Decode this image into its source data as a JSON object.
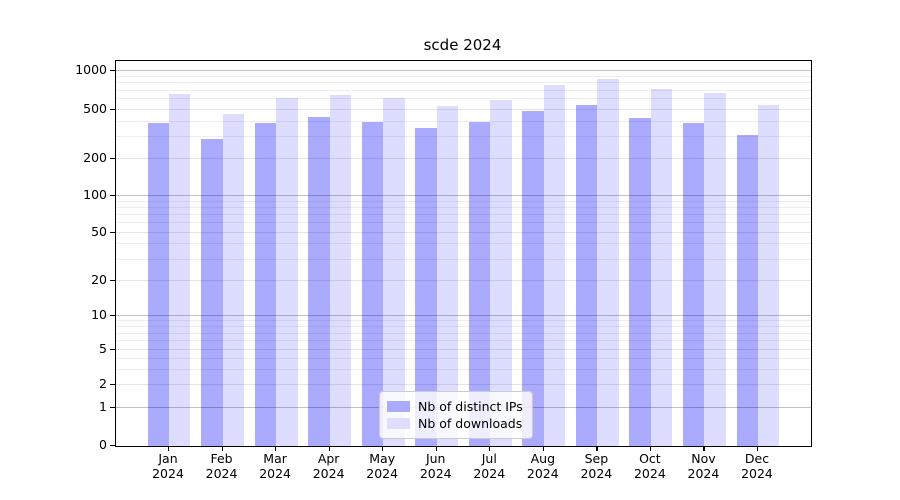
{
  "title": "scde 2024",
  "legend": {
    "items": [
      {
        "label": "Nb of distinct IPs"
      },
      {
        "label": "Nb of downloads"
      }
    ]
  },
  "chart_data": {
    "type": "bar",
    "title": "scde 2024",
    "categories": [
      "Jan 2024",
      "Feb 2024",
      "Mar 2024",
      "Apr 2024",
      "May 2024",
      "Jun 2024",
      "Jul 2024",
      "Aug 2024",
      "Sep 2024",
      "Oct 2024",
      "Nov 2024",
      "Dec 2024"
    ],
    "series": [
      {
        "name": "Nb of distinct IPs",
        "color": "#aaaaff",
        "values": [
          390,
          290,
          390,
          435,
          400,
          355,
          395,
          490,
          540,
          430,
          390,
          310
        ]
      },
      {
        "name": "Nb of downloads",
        "color": "#ddddff",
        "values": [
          665,
          460,
          615,
          650,
          615,
          530,
          590,
          775,
          865,
          725,
          675,
          540
        ]
      }
    ],
    "yscale": "symlog",
    "yticks": [
      0,
      1,
      2,
      5,
      10,
      20,
      50,
      100,
      200,
      500,
      1000
    ],
    "ylim": [
      0,
      1200
    ],
    "xlabel": "",
    "ylabel": "",
    "grid": true,
    "legend_position": "lower center"
  }
}
